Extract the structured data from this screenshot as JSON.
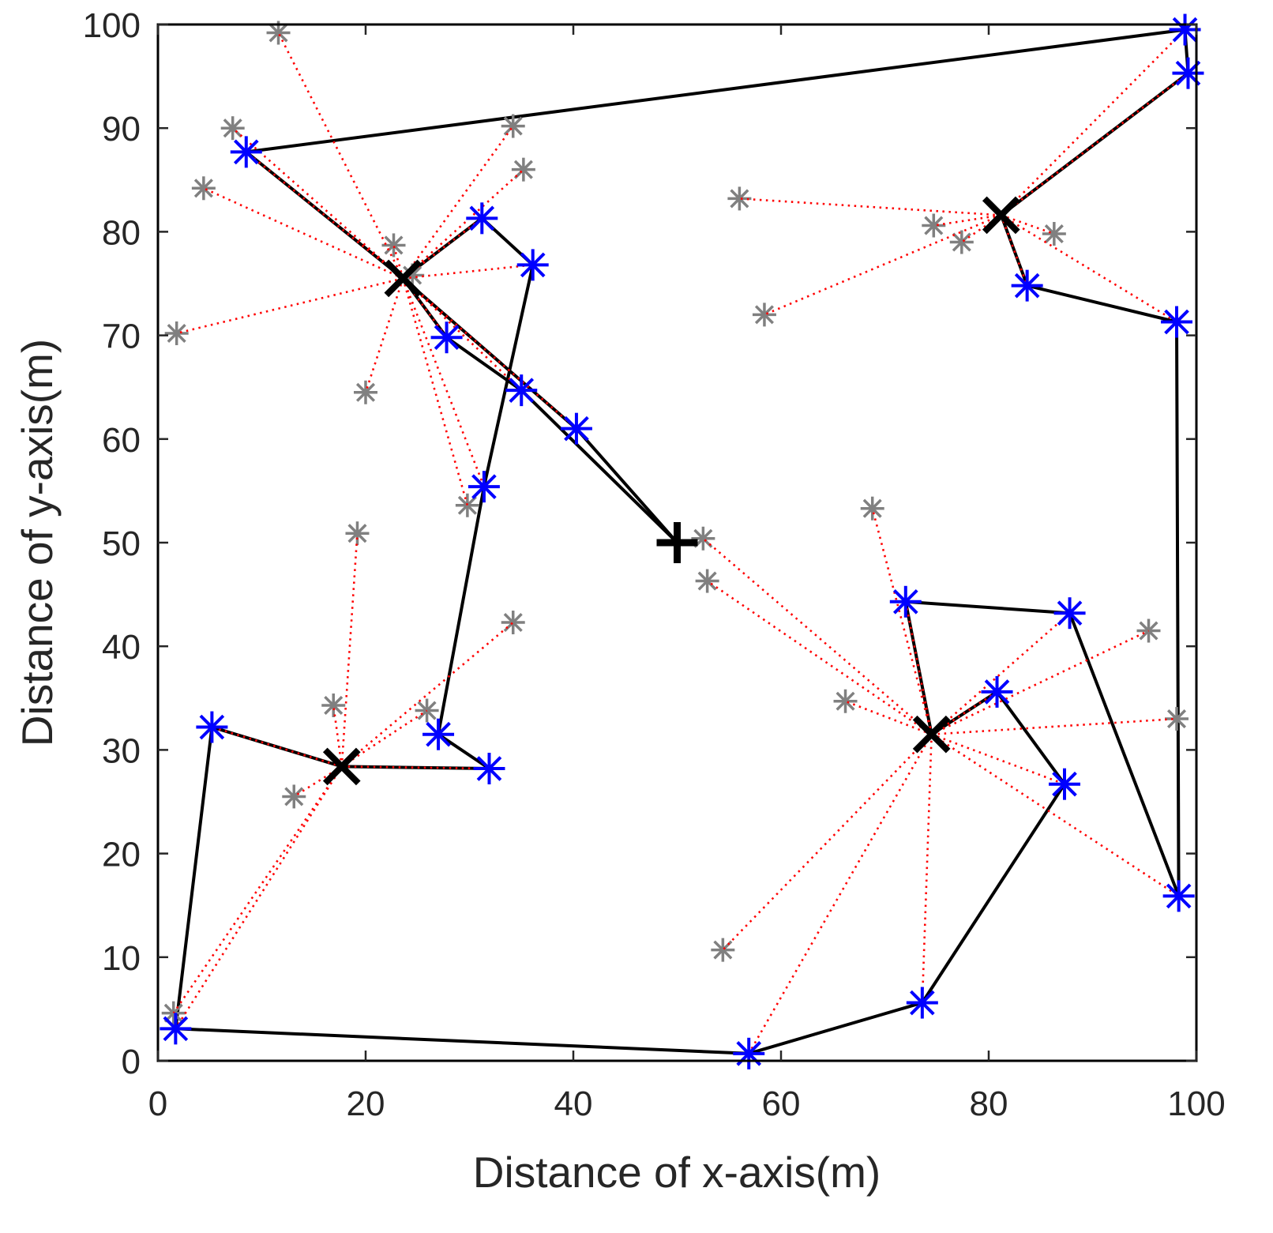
{
  "chart_data": {
    "type": "scatter",
    "xlabel": "Distance of x-axis(m)",
    "ylabel": "Distance of y-axis(m)",
    "xlim": [
      0,
      100
    ],
    "ylim": [
      0,
      100
    ],
    "xticks": [
      0,
      20,
      40,
      60,
      80,
      100
    ],
    "yticks": [
      0,
      10,
      20,
      30,
      40,
      50,
      60,
      70,
      80,
      90,
      100
    ],
    "grid": false,
    "sink": [
      50,
      50
    ],
    "cluster_heads": [
      [
        23.6,
        75.5
      ],
      [
        81.2,
        81.6
      ],
      [
        17.7,
        28.4
      ],
      [
        74.5,
        31.5
      ]
    ],
    "normal_nodes": [
      [
        11.6,
        99.2
      ],
      [
        7.2,
        90.0
      ],
      [
        4.4,
        84.2
      ],
      [
        34.2,
        90.2
      ],
      [
        35.2,
        86.0
      ],
      [
        22.7,
        78.7
      ],
      [
        1.8,
        70.2
      ],
      [
        20.0,
        64.5
      ],
      [
        29.8,
        53.6
      ],
      [
        19.2,
        50.9
      ],
      [
        34.2,
        42.3
      ],
      [
        16.9,
        34.3
      ],
      [
        25.9,
        33.8
      ],
      [
        13.1,
        25.5
      ],
      [
        1.5,
        4.6
      ],
      [
        56.0,
        83.2
      ],
      [
        74.7,
        80.6
      ],
      [
        77.4,
        79.0
      ],
      [
        86.3,
        79.8
      ],
      [
        58.4,
        72.0
      ],
      [
        52.5,
        50.4
      ],
      [
        52.9,
        46.3
      ],
      [
        68.8,
        53.3
      ],
      [
        66.2,
        34.7
      ],
      [
        95.4,
        41.5
      ],
      [
        98.1,
        33.0
      ],
      [
        54.4,
        10.7
      ],
      [
        24.5,
        75.8
      ]
    ],
    "relay_nodes": [
      [
        98.9,
        99.5
      ],
      [
        99.2,
        95.3
      ],
      [
        8.5,
        87.7
      ],
      [
        31.2,
        81.3
      ],
      [
        36.1,
        76.8
      ],
      [
        27.8,
        69.8
      ],
      [
        35.0,
        64.7
      ],
      [
        40.3,
        61.0
      ],
      [
        31.4,
        55.4
      ],
      [
        83.7,
        74.8
      ],
      [
        98.1,
        71.3
      ],
      [
        72.0,
        44.3
      ],
      [
        87.8,
        43.2
      ],
      [
        80.8,
        35.6
      ],
      [
        87.3,
        26.7
      ],
      [
        98.3,
        15.9
      ],
      [
        73.6,
        5.6
      ],
      [
        56.9,
        0.7
      ],
      [
        1.7,
        3.1
      ],
      [
        5.2,
        32.2
      ],
      [
        27.0,
        31.5
      ],
      [
        31.9,
        28.2
      ]
    ],
    "clusters": [
      {
        "head": [
          23.6,
          75.5
        ],
        "members": [
          [
            11.6,
            99.2
          ],
          [
            7.2,
            90.0
          ],
          [
            4.4,
            84.2
          ],
          [
            34.2,
            90.2
          ],
          [
            35.2,
            86.0
          ],
          [
            22.7,
            78.7
          ],
          [
            1.8,
            70.2
          ],
          [
            20.0,
            64.5
          ],
          [
            29.8,
            53.6
          ],
          [
            8.5,
            87.7
          ],
          [
            31.2,
            81.3
          ],
          [
            36.1,
            76.8
          ],
          [
            27.8,
            69.8
          ],
          [
            35.0,
            64.7
          ],
          [
            40.3,
            61.0
          ],
          [
            31.4,
            55.4
          ]
        ]
      },
      {
        "head": [
          81.2,
          81.6
        ],
        "members": [
          [
            56.0,
            83.2
          ],
          [
            74.7,
            80.6
          ],
          [
            77.4,
            79.0
          ],
          [
            86.3,
            79.8
          ],
          [
            58.4,
            72.0
          ],
          [
            98.9,
            99.5
          ],
          [
            99.2,
            95.3
          ],
          [
            83.7,
            74.8
          ],
          [
            98.1,
            71.3
          ]
        ]
      },
      {
        "head": [
          17.7,
          28.4
        ],
        "members": [
          [
            19.2,
            50.9
          ],
          [
            16.9,
            34.3
          ],
          [
            34.2,
            42.3
          ],
          [
            25.9,
            33.8
          ],
          [
            13.1,
            25.5
          ],
          [
            1.5,
            4.6
          ],
          [
            1.7,
            3.1
          ],
          [
            5.2,
            32.2
          ],
          [
            31.9,
            28.2
          ]
        ]
      },
      {
        "head": [
          74.5,
          31.5
        ],
        "members": [
          [
            68.8,
            53.3
          ],
          [
            66.2,
            34.7
          ],
          [
            95.4,
            41.5
          ],
          [
            98.1,
            33.0
          ],
          [
            54.4,
            10.7
          ],
          [
            52.5,
            50.4
          ],
          [
            52.9,
            46.3
          ],
          [
            72.0,
            44.3
          ],
          [
            87.8,
            43.2
          ],
          [
            80.8,
            35.6
          ],
          [
            87.3,
            26.7
          ],
          [
            98.3,
            15.9
          ],
          [
            73.6,
            5.6
          ],
          [
            56.9,
            0.7
          ]
        ]
      }
    ],
    "paths": [
      [
        [
          1.7,
          3.1
        ],
        [
          56.9,
          0.7
        ],
        [
          73.6,
          5.6
        ],
        [
          87.3,
          26.7
        ],
        [
          80.8,
          35.6
        ],
        [
          74.5,
          31.5
        ],
        [
          72.0,
          44.3
        ],
        [
          87.8,
          43.2
        ],
        [
          98.3,
          15.9
        ],
        [
          98.1,
          71.3
        ],
        [
          83.7,
          74.8
        ],
        [
          81.2,
          81.6
        ],
        [
          99.2,
          95.3
        ],
        [
          98.9,
          99.5
        ],
        [
          8.5,
          87.7
        ],
        [
          23.6,
          75.5
        ],
        [
          31.2,
          81.3
        ],
        [
          36.1,
          76.8
        ],
        [
          31.4,
          55.4
        ],
        [
          27.0,
          31.5
        ],
        [
          31.9,
          28.2
        ],
        [
          17.7,
          28.4
        ],
        [
          5.2,
          32.2
        ],
        [
          1.7,
          3.1
        ]
      ],
      [
        [
          23.6,
          75.5
        ],
        [
          27.8,
          69.8
        ],
        [
          35.0,
          64.7
        ],
        [
          50,
          50
        ]
      ],
      [
        [
          23.6,
          75.5
        ],
        [
          40.3,
          61.0
        ],
        [
          50,
          50
        ]
      ]
    ],
    "colors": {
      "normal": "#808080",
      "relay": "#0000ff",
      "head": "#000000",
      "sink": "#000000",
      "link": "#ff0000",
      "path": "#000000",
      "axis": "#262626"
    }
  }
}
